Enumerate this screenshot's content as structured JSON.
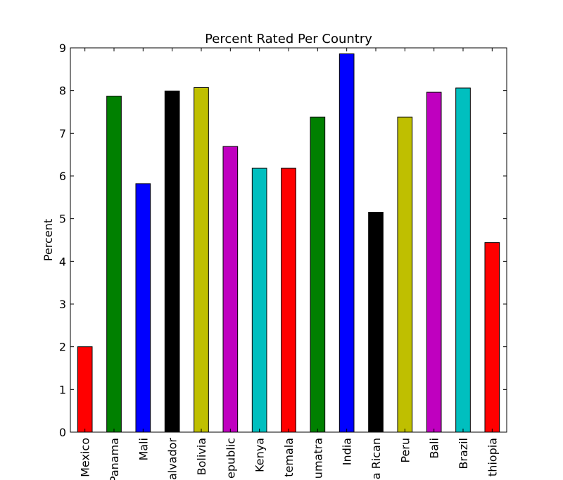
{
  "chart_data": {
    "type": "bar",
    "title": "Percent Rated Per Country",
    "xlabel": "",
    "ylabel": "Percent",
    "ylim": [
      0,
      9
    ],
    "yticks": [
      0,
      1,
      2,
      3,
      4,
      5,
      6,
      7,
      8,
      9
    ],
    "grid": false,
    "categories": [
      "Mexico",
      "Panama",
      "Mali",
      "El Salvador",
      "Bolivia",
      "Dominican Republic",
      "Kenya",
      "Guatemala",
      "Sumatra",
      "India",
      "Costa Rican",
      "Peru",
      "Bali",
      "Brazil",
      "Ethiopia"
    ],
    "tick_labels": [
      "Mexico",
      "Panama",
      "Mali",
      "alvador",
      "Bolivia",
      "epublic",
      "Kenya",
      "temala",
      "umatra",
      "India",
      "a Rican",
      "Peru",
      "Bali",
      "Brazil",
      "thiopia"
    ],
    "values": [
      2.0,
      7.87,
      5.82,
      7.99,
      8.07,
      6.69,
      6.18,
      6.18,
      7.38,
      8.86,
      5.15,
      7.38,
      7.96,
      8.06,
      4.44
    ],
    "colors": [
      "#ff0000",
      "#008000",
      "#0000ff",
      "#000000",
      "#bfbf00",
      "#bf00bf",
      "#00bfbf",
      "#ff0000",
      "#008000",
      "#0000ff",
      "#000000",
      "#bfbf00",
      "#bf00bf",
      "#00bfbf",
      "#ff0000"
    ]
  }
}
